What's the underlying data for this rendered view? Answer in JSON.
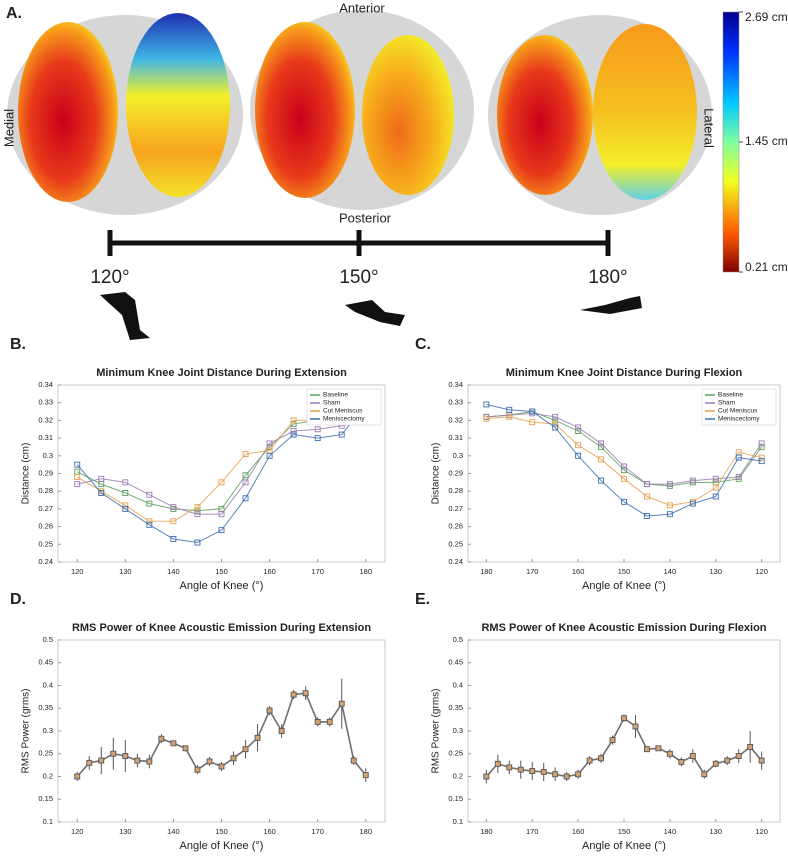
{
  "panel_a": {
    "label": "A.",
    "top": "Anterior",
    "bottom": "Posterior",
    "left": "Medial",
    "right": "Lateral",
    "colorbar": {
      "lim": [
        0.21,
        2.69
      ],
      "ticks": [
        {
          "value": 2.69,
          "label": "2.69 cm"
        },
        {
          "value": 1.45,
          "label": "1.45 cm"
        },
        {
          "value": 0.21,
          "label": "0.21 cm"
        }
      ]
    },
    "angle_lim": [
      120,
      180
    ],
    "angles": [
      {
        "value": 120,
        "label": "120°"
      },
      {
        "value": 150,
        "label": "150°"
      },
      {
        "value": 180,
        "label": "180°"
      }
    ]
  },
  "chart_data": [
    {
      "type": "line",
      "panel_label": "B.",
      "title": "Minimum Knee Joint Distance During Extension",
      "xlabel": "Angle of Knee (°)",
      "ylabel": "Distance (cm)",
      "x": [
        120,
        125,
        130,
        135,
        140,
        145,
        150,
        155,
        160,
        165,
        170,
        175,
        180
      ],
      "series": [
        {
          "name": "Baseline",
          "color": "#5aa05a",
          "values": [
            0.291,
            0.284,
            0.279,
            0.273,
            0.27,
            0.269,
            0.27,
            0.289,
            0.305,
            0.318,
            0.32,
            0.32,
            0.321
          ]
        },
        {
          "name": "Sham",
          "color": "#9b7bb5",
          "values": [
            0.284,
            0.287,
            0.285,
            0.278,
            0.271,
            0.267,
            0.267,
            0.285,
            0.307,
            0.314,
            0.315,
            0.317,
            0.32
          ]
        },
        {
          "name": "Cut Meniscus",
          "color": "#e8a050",
          "values": [
            0.288,
            0.28,
            0.272,
            0.263,
            0.263,
            0.271,
            0.285,
            0.301,
            0.303,
            0.32,
            0.32,
            0.321,
            0.321
          ]
        },
        {
          "name": "Meniscectomy",
          "color": "#3a6fb0",
          "values": [
            0.295,
            0.279,
            0.27,
            0.261,
            0.253,
            0.251,
            0.258,
            0.276,
            0.3,
            0.312,
            0.31,
            0.312,
            0.329
          ]
        }
      ],
      "xlim": [
        116,
        184
      ],
      "xticks": [
        120,
        130,
        140,
        150,
        160,
        170,
        180
      ],
      "ylim": [
        0.24,
        0.34
      ],
      "yticks": [
        0.24,
        0.25,
        0.26,
        0.27,
        0.28,
        0.29,
        0.3,
        0.31,
        0.32,
        0.33,
        0.34
      ],
      "legend": "upper right"
    },
    {
      "type": "line",
      "panel_label": "C.",
      "title": "Minimum Knee Joint Distance During Flexion",
      "xlabel": "Angle of Knee (°)",
      "ylabel": "Distance (cm)",
      "x": [
        180,
        175,
        170,
        165,
        160,
        155,
        150,
        145,
        140,
        135,
        130,
        125,
        120
      ],
      "series": [
        {
          "name": "Baseline",
          "color": "#5aa05a",
          "values": [
            0.322,
            0.323,
            0.325,
            0.32,
            0.314,
            0.305,
            0.292,
            0.284,
            0.283,
            0.285,
            0.285,
            0.287,
            0.305
          ]
        },
        {
          "name": "Sham",
          "color": "#9b7bb5",
          "values": [
            0.322,
            0.323,
            0.324,
            0.322,
            0.316,
            0.307,
            0.294,
            0.284,
            0.284,
            0.286,
            0.287,
            0.288,
            0.307
          ]
        },
        {
          "name": "Cut Meniscus",
          "color": "#e8a050",
          "values": [
            0.321,
            0.322,
            0.319,
            0.318,
            0.306,
            0.298,
            0.287,
            0.277,
            0.272,
            0.274,
            0.282,
            0.302,
            0.299
          ]
        },
        {
          "name": "Meniscectomy",
          "color": "#3a6fb0",
          "values": [
            0.329,
            0.326,
            0.325,
            0.316,
            0.3,
            0.286,
            0.274,
            0.266,
            0.267,
            0.273,
            0.277,
            0.299,
            0.297
          ]
        }
      ],
      "xlim": [
        184,
        116
      ],
      "xticks": [
        180,
        170,
        160,
        150,
        140,
        130,
        120
      ],
      "ylim": [
        0.24,
        0.34
      ],
      "yticks": [
        0.24,
        0.25,
        0.26,
        0.27,
        0.28,
        0.29,
        0.3,
        0.31,
        0.32,
        0.33,
        0.34
      ],
      "legend": "upper right"
    },
    {
      "type": "line",
      "panel_label": "D.",
      "title": "RMS Power of Knee Acoustic Emission During Extension",
      "xlabel": "Angle of Knee (°)",
      "ylabel": "RMS Power (grms)",
      "x": [
        120,
        122.5,
        125,
        127.5,
        130,
        132.5,
        135,
        137.5,
        140,
        142.5,
        145,
        147.5,
        150,
        152.5,
        155,
        157.5,
        160,
        162.5,
        165,
        167.5,
        170,
        172.5,
        175,
        177.5,
        180
      ],
      "series": [
        {
          "color": "#555555",
          "marker_color": "#d4a373",
          "values": [
            0.2,
            0.23,
            0.235,
            0.25,
            0.245,
            0.235,
            0.233,
            0.283,
            0.273,
            0.262,
            0.215,
            0.233,
            0.222,
            0.24,
            0.26,
            0.285,
            0.345,
            0.3,
            0.38,
            0.383,
            0.32,
            0.32,
            0.36,
            0.235,
            0.203
          ],
          "errors": [
            0.01,
            0.015,
            0.03,
            0.035,
            0.035,
            0.015,
            0.015,
            0.01,
            0.005,
            0.005,
            0.01,
            0.01,
            0.01,
            0.015,
            0.02,
            0.03,
            0.01,
            0.015,
            0.01,
            0.015,
            0.01,
            0.01,
            0.055,
            0.01,
            0.015
          ]
        }
      ],
      "xlim": [
        116,
        184
      ],
      "xticks": [
        120,
        130,
        140,
        150,
        160,
        170,
        180
      ],
      "ylim": [
        0.1,
        0.5
      ],
      "yticks": [
        0.1,
        0.15,
        0.2,
        0.25,
        0.3,
        0.35,
        0.4,
        0.45,
        0.5
      ]
    },
    {
      "type": "line",
      "panel_label": "E.",
      "title": "RMS Power of Knee Acoustic Emission During Flexion",
      "xlabel": "Angle of Knee (°)",
      "ylabel": "RMS Power (grms)",
      "x": [
        180,
        177.5,
        175,
        172.5,
        170,
        167.5,
        165,
        162.5,
        160,
        157.5,
        155,
        152.5,
        150,
        147.5,
        145,
        142.5,
        140,
        137.5,
        135,
        132.5,
        130,
        127.5,
        125,
        122.5,
        120
      ],
      "series": [
        {
          "color": "#555555",
          "marker_color": "#d4a373",
          "values": [
            0.2,
            0.228,
            0.22,
            0.215,
            0.212,
            0.21,
            0.205,
            0.2,
            0.205,
            0.235,
            0.24,
            0.28,
            0.328,
            0.31,
            0.26,
            0.262,
            0.25,
            0.232,
            0.245,
            0.205,
            0.228,
            0.235,
            0.245,
            0.265,
            0.235
          ],
          "errors": [
            0.015,
            0.02,
            0.015,
            0.02,
            0.02,
            0.02,
            0.015,
            0.01,
            0.01,
            0.01,
            0.01,
            0.01,
            0.008,
            0.025,
            0.005,
            0.005,
            0.01,
            0.01,
            0.015,
            0.01,
            0.008,
            0.01,
            0.015,
            0.035,
            0.02
          ]
        }
      ],
      "xlim": [
        184,
        116
      ],
      "xticks": [
        180,
        170,
        160,
        150,
        140,
        130,
        120
      ],
      "ylim": [
        0.1,
        0.5
      ],
      "yticks": [
        0.1,
        0.15,
        0.2,
        0.25,
        0.3,
        0.35,
        0.4,
        0.45,
        0.5
      ]
    }
  ]
}
